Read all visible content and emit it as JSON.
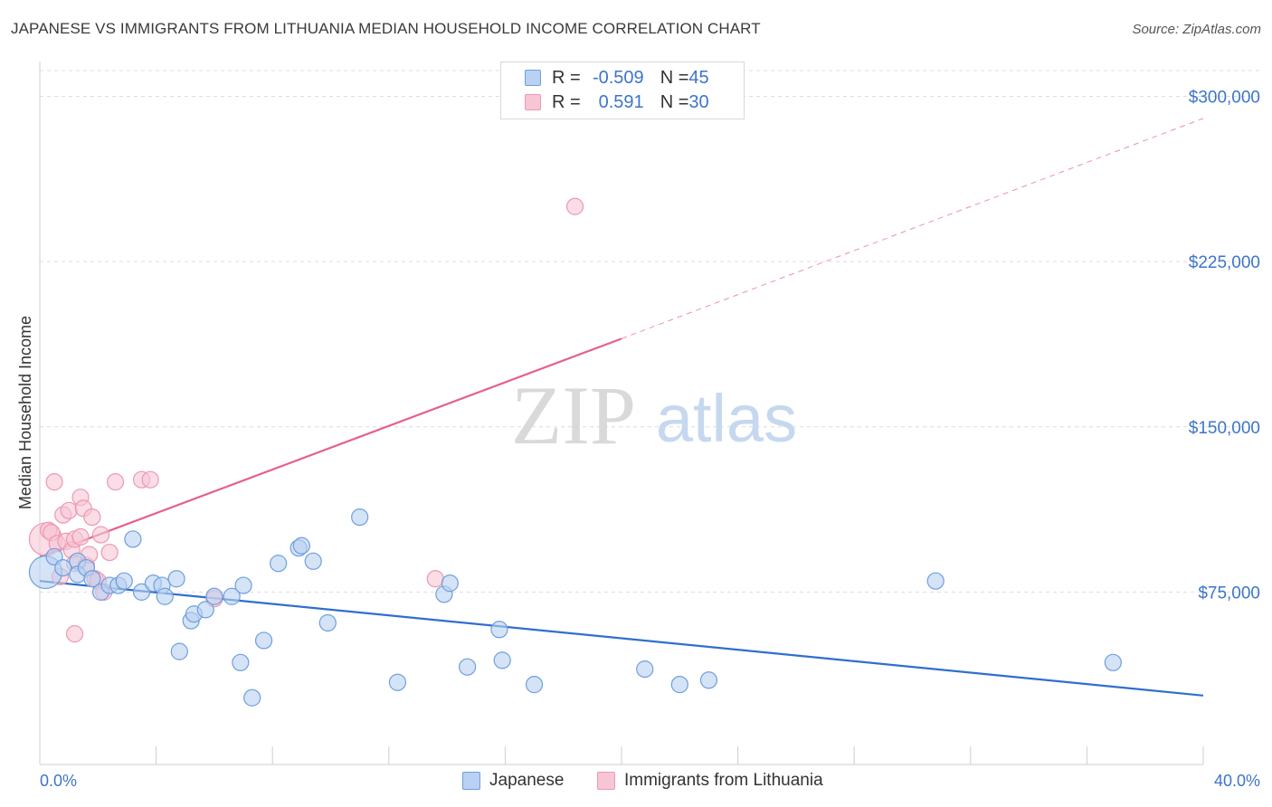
{
  "title": "JAPANESE VS IMMIGRANTS FROM LITHUANIA MEDIAN HOUSEHOLD INCOME CORRELATION CHART",
  "source": "Source: ZipAtlas.com",
  "watermark": {
    "zip": "ZIP",
    "atlas": "atlas"
  },
  "legend": {
    "japanese": {
      "r_label": "R = ",
      "r_value": "-0.509",
      "n_label": "N = ",
      "n_value": "45"
    },
    "lithuania": {
      "r_label": "R = ",
      "r_value": "0.591",
      "n_label": "N = ",
      "n_value": "30"
    }
  },
  "bottom_legend": {
    "japanese": "Japanese",
    "lithuania": "Immigrants from Lithuania"
  },
  "colors": {
    "japanese_fill": "#b9d1f2",
    "japanese_stroke": "#6e9fdc",
    "japanese_line": "#2f6fce",
    "lithuania_fill": "#f7c6d4",
    "lithuania_stroke": "#ee97b2",
    "lithuania_line": "#e4628e",
    "tick_label": "#3d75c9",
    "grid": "#dddddd"
  },
  "chart_data": {
    "type": "scatter",
    "title": "JAPANESE VS IMMIGRANTS FROM LITHUANIA MEDIAN HOUSEHOLD INCOME CORRELATION CHART",
    "xlabel": "",
    "ylabel": "Median Household Income",
    "xlim": [
      0,
      40
    ],
    "ylim": [
      0,
      315000
    ],
    "x_tick_labels": [
      "0.0%",
      "40.0%"
    ],
    "y_ticks": [
      75000,
      150000,
      225000,
      300000
    ],
    "y_tick_labels": [
      "$75,000",
      "$150,000",
      "$225,000",
      "$300,000"
    ],
    "grid": true,
    "series": [
      {
        "name": "Japanese",
        "trend": {
          "x": [
            0,
            40
          ],
          "y": [
            80000,
            28000
          ],
          "dashed_from_x": null
        },
        "points": [
          {
            "x": 0.2,
            "y": 84000,
            "big": true
          },
          {
            "x": 0.5,
            "y": 91000
          },
          {
            "x": 0.8,
            "y": 86000
          },
          {
            "x": 1.3,
            "y": 89000
          },
          {
            "x": 1.3,
            "y": 83000
          },
          {
            "x": 1.6,
            "y": 86000
          },
          {
            "x": 1.8,
            "y": 81000
          },
          {
            "x": 2.1,
            "y": 75000
          },
          {
            "x": 2.4,
            "y": 78000
          },
          {
            "x": 2.7,
            "y": 78000
          },
          {
            "x": 2.9,
            "y": 80000
          },
          {
            "x": 3.2,
            "y": 99000
          },
          {
            "x": 3.5,
            "y": 75000
          },
          {
            "x": 3.9,
            "y": 79000
          },
          {
            "x": 4.2,
            "y": 78000
          },
          {
            "x": 4.3,
            "y": 73000
          },
          {
            "x": 4.7,
            "y": 81000
          },
          {
            "x": 4.8,
            "y": 48000
          },
          {
            "x": 5.2,
            "y": 62000
          },
          {
            "x": 5.3,
            "y": 65000
          },
          {
            "x": 5.7,
            "y": 67000
          },
          {
            "x": 6.0,
            "y": 73000
          },
          {
            "x": 6.6,
            "y": 73000
          },
          {
            "x": 6.9,
            "y": 43000
          },
          {
            "x": 7.0,
            "y": 78000
          },
          {
            "x": 7.3,
            "y": 27000
          },
          {
            "x": 7.7,
            "y": 53000
          },
          {
            "x": 8.2,
            "y": 88000
          },
          {
            "x": 8.9,
            "y": 95000
          },
          {
            "x": 9.0,
            "y": 96000
          },
          {
            "x": 9.4,
            "y": 89000
          },
          {
            "x": 9.9,
            "y": 61000
          },
          {
            "x": 11.0,
            "y": 109000
          },
          {
            "x": 12.3,
            "y": 34000
          },
          {
            "x": 13.9,
            "y": 74000
          },
          {
            "x": 14.1,
            "y": 79000
          },
          {
            "x": 14.7,
            "y": 41000
          },
          {
            "x": 15.8,
            "y": 58000
          },
          {
            "x": 15.9,
            "y": 44000
          },
          {
            "x": 17.0,
            "y": 33000
          },
          {
            "x": 20.8,
            "y": 40000
          },
          {
            "x": 22.0,
            "y": 33000
          },
          {
            "x": 23.0,
            "y": 35000
          },
          {
            "x": 30.8,
            "y": 80000
          },
          {
            "x": 36.9,
            "y": 43000
          }
        ]
      },
      {
        "name": "Immigrants from Lithuania",
        "trend": {
          "x": [
            0,
            20,
            40
          ],
          "y": [
            91000,
            190000,
            290000
          ],
          "dashed_from_x": 20
        },
        "points": [
          {
            "x": 0.2,
            "y": 99000,
            "big": true
          },
          {
            "x": 0.3,
            "y": 103000
          },
          {
            "x": 0.4,
            "y": 102000
          },
          {
            "x": 0.5,
            "y": 125000
          },
          {
            "x": 0.6,
            "y": 97000
          },
          {
            "x": 0.8,
            "y": 110000
          },
          {
            "x": 0.9,
            "y": 98000
          },
          {
            "x": 1.0,
            "y": 112000
          },
          {
            "x": 1.1,
            "y": 94000
          },
          {
            "x": 1.2,
            "y": 99000
          },
          {
            "x": 1.2,
            "y": 88000
          },
          {
            "x": 1.2,
            "y": 56000
          },
          {
            "x": 1.4,
            "y": 118000
          },
          {
            "x": 1.4,
            "y": 100000
          },
          {
            "x": 1.5,
            "y": 113000
          },
          {
            "x": 1.6,
            "y": 87000
          },
          {
            "x": 1.7,
            "y": 92000
          },
          {
            "x": 1.8,
            "y": 109000
          },
          {
            "x": 1.9,
            "y": 81000
          },
          {
            "x": 2.0,
            "y": 80000
          },
          {
            "x": 2.1,
            "y": 101000
          },
          {
            "x": 2.2,
            "y": 75000
          },
          {
            "x": 2.4,
            "y": 93000
          },
          {
            "x": 2.6,
            "y": 125000
          },
          {
            "x": 3.5,
            "y": 126000
          },
          {
            "x": 3.8,
            "y": 126000
          },
          {
            "x": 6.0,
            "y": 72000
          },
          {
            "x": 13.6,
            "y": 81000
          },
          {
            "x": 18.4,
            "y": 250000
          },
          {
            "x": 0.7,
            "y": 82000
          }
        ]
      }
    ]
  }
}
